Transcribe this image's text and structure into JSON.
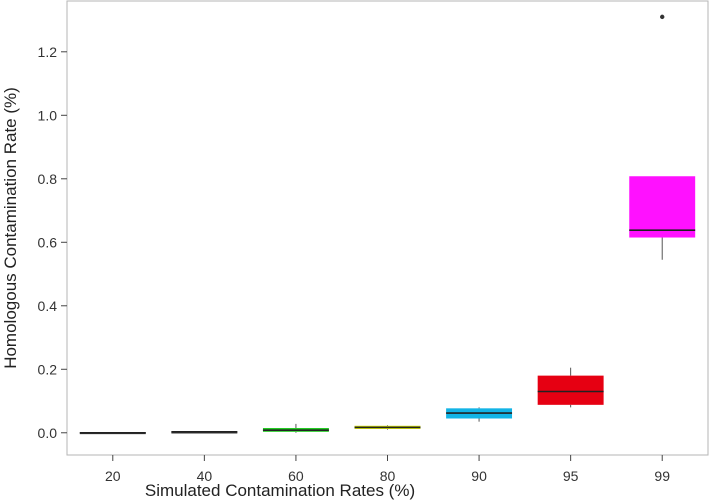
{
  "chart_data": {
    "type": "box",
    "title": "",
    "xlabel": "Simulated Contamination Rates (%)",
    "ylabel": "Homologous Contamination Rate (%)",
    "ylim": [
      -0.07,
      1.36
    ],
    "yticks": [
      0.0,
      0.2,
      0.4,
      0.6,
      0.8,
      1.0,
      1.2
    ],
    "ytick_labels": [
      "0.0",
      "0.2",
      "0.4",
      "0.6",
      "0.8",
      "1.0",
      "1.2"
    ],
    "categories": [
      "20",
      "40",
      "60",
      "80",
      "90",
      "95",
      "99"
    ],
    "boxes": [
      {
        "category": "20",
        "color": "#3a3a3a",
        "whisker_low": 0.0,
        "q1": 0.0,
        "median": 0.0,
        "q3": 0.002,
        "whisker_high": 0.002,
        "outliers": []
      },
      {
        "category": "40",
        "color": "#3a3a3a",
        "whisker_low": 0.002,
        "q1": 0.002,
        "median": 0.003,
        "q3": 0.004,
        "whisker_high": 0.004,
        "outliers": []
      },
      {
        "category": "60",
        "color": "#22cc22",
        "whisker_low": 0.0,
        "q1": 0.003,
        "median": 0.008,
        "q3": 0.015,
        "whisker_high": 0.028,
        "outliers": []
      },
      {
        "category": "80",
        "color": "#c8d400",
        "whisker_low": 0.01,
        "q1": 0.012,
        "median": 0.017,
        "q3": 0.022,
        "whisker_high": 0.024,
        "outliers": []
      },
      {
        "category": "90",
        "color": "#12b4e6",
        "whisker_low": 0.035,
        "q1": 0.045,
        "median": 0.062,
        "q3": 0.077,
        "whisker_high": 0.08,
        "outliers": []
      },
      {
        "category": "95",
        "color": "#e60012",
        "whisker_low": 0.08,
        "q1": 0.088,
        "median": 0.13,
        "q3": 0.18,
        "whisker_high": 0.205,
        "outliers": []
      },
      {
        "category": "99",
        "color": "#ff11ff",
        "whisker_low": 0.545,
        "q1": 0.615,
        "median": 0.638,
        "q3": 0.808,
        "whisker_high": 0.808,
        "outliers": [
          1.31
        ]
      }
    ],
    "grid": false,
    "legend": "none"
  }
}
